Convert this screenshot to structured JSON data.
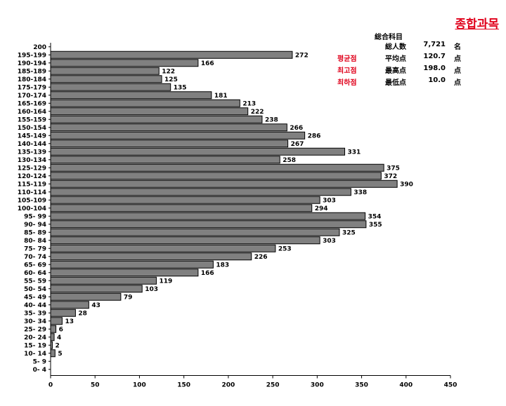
{
  "title": "종합과목",
  "stats": {
    "header": "総合科目",
    "rows": [
      {
        "red_label": "",
        "label": "総人数",
        "value": "7,721",
        "unit": "名"
      },
      {
        "red_label": "평균점",
        "label": "平均点",
        "value": "120.7",
        "unit": "点"
      },
      {
        "red_label": "최고점",
        "label": "最高点",
        "value": "198.0",
        "unit": "点"
      },
      {
        "red_label": "최하점",
        "label": "最低点",
        "value": "10.0",
        "unit": "点"
      }
    ]
  },
  "chart_data": {
    "type": "bar",
    "orientation": "horizontal",
    "categories": [
      "200",
      "195-199",
      "190-194",
      "185-189",
      "180-184",
      "175-179",
      "170-174",
      "165-169",
      "160-164",
      "155-159",
      "150-154",
      "145-149",
      "140-144",
      "135-139",
      "130-134",
      "125-129",
      "120-124",
      "115-119",
      "110-114",
      "105-109",
      "100-104",
      "95- 99",
      "90- 94",
      "85- 89",
      "80- 84",
      "75- 79",
      "70- 74",
      "65- 69",
      "60- 64",
      "55- 59",
      "50- 54",
      "45- 49",
      "40- 44",
      "35- 39",
      "30- 34",
      "25- 29",
      "20- 24",
      "15- 19",
      "10- 14",
      "5- 9",
      "0- 4"
    ],
    "values": [
      null,
      272,
      166,
      122,
      125,
      135,
      181,
      213,
      222,
      238,
      266,
      286,
      267,
      331,
      258,
      375,
      372,
      390,
      338,
      303,
      294,
      354,
      355,
      325,
      303,
      253,
      226,
      183,
      166,
      119,
      103,
      79,
      43,
      28,
      13,
      6,
      4,
      2,
      5,
      null,
      null
    ],
    "xlim": [
      0,
      450
    ],
    "xticks": [
      0,
      50,
      100,
      150,
      200,
      250,
      300,
      350,
      400,
      450
    ],
    "bar_color": "#808080",
    "grid": false
  }
}
